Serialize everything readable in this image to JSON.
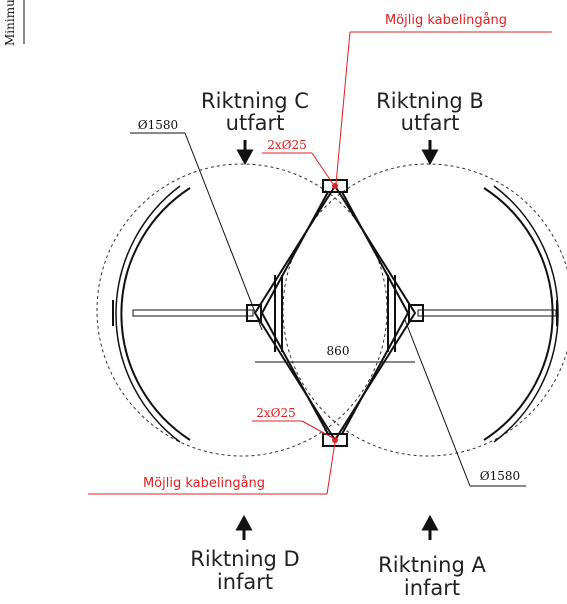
{
  "side_label": "Minimu",
  "cable_top": "Möjlig kabelingång",
  "cable_bottom": "Möjlig kabelingång",
  "dir_c": {
    "title": "Riktning C",
    "sub": "utfart"
  },
  "dir_b": {
    "title": "Riktning B",
    "sub": "utfart"
  },
  "dir_d": {
    "title": "Riktning D",
    "sub": "infart"
  },
  "dir_a": {
    "title": "Riktning A",
    "sub": "infart"
  },
  "dia_left": "Ø1580",
  "dia_right": "Ø1580",
  "hole_top": "2xØ25",
  "hole_bottom": "2xØ25",
  "width_dim": "860"
}
